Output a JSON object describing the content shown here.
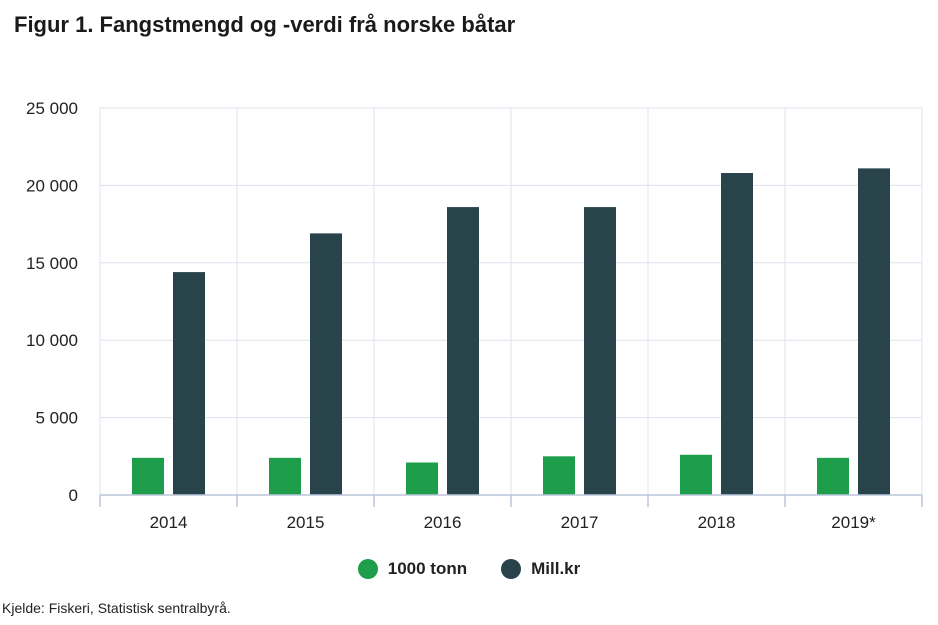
{
  "title": "Figur 1. Fangstmengd og -verdi frå norske båtar",
  "source": "Kjelde: Fiskeri, Statistisk sentralbyrå.",
  "colors": {
    "series_1": "#1e9e4a",
    "series_2": "#28444a",
    "grid": "#dde3ee",
    "axis": "#bcc6dc"
  },
  "chart_data": {
    "type": "bar",
    "categories": [
      "2014",
      "2015",
      "2016",
      "2017",
      "2018",
      "2019*"
    ],
    "series": [
      {
        "name": "1000 tonn",
        "values": [
          2400,
          2400,
          2100,
          2500,
          2600,
          2400
        ]
      },
      {
        "name": "Mill.kr",
        "values": [
          14400,
          16900,
          18600,
          18600,
          20800,
          21100
        ]
      }
    ],
    "ylim": [
      0,
      25000
    ],
    "yticks": [
      0,
      5000,
      10000,
      15000,
      20000,
      25000
    ],
    "ytick_labels": [
      "0",
      "5 000",
      "10 000",
      "15 000",
      "20 000",
      "25 000"
    ],
    "grid": true,
    "legend_position": "bottom"
  }
}
